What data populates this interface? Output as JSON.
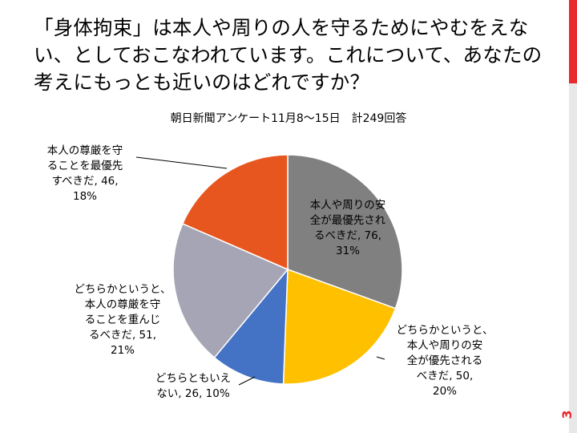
{
  "slide": {
    "question": "「身体拘束」は本人や周りの人を守るためにやむをえない、としておこなわれています。これについて、あなたの考えにもっとも近いのはどれですか？",
    "page_number": "3"
  },
  "colors": {
    "accent_red": "#e8292e",
    "sidebar_gray": "#e8e8e8"
  },
  "chart_data": {
    "type": "pie",
    "title": "朝日新聞アンケート11月8〜15日　計249回答",
    "start_angle_deg": 0,
    "direction": "clockwise",
    "slices": [
      {
        "label": "本人や周りの安全が最優先されるべきだ",
        "value": 76,
        "percent": "31%",
        "color": "#808080"
      },
      {
        "label": "どちらかというと、本人や周りの安全が優先されるべきだ",
        "value": 50,
        "percent": "20%",
        "color": "#ffc000"
      },
      {
        "label": "どちらともいえない",
        "value": 26,
        "percent": "10%",
        "color": "#4472c4"
      },
      {
        "label": "どちらかというと、本人の尊厳を守ることを重んじるべきだ",
        "value": 51,
        "percent": "21%",
        "color": "#a5a5b5"
      },
      {
        "label": "本人の尊厳を守ることを最優先すべきだ",
        "value": 46,
        "percent": "18%",
        "color": "#e8561f"
      }
    ],
    "data_labels": [
      {
        "lines": [
          "本人や周りの安",
          "全が最優先され",
          "るべきだ, 76,",
          "31%"
        ]
      },
      {
        "lines": [
          "どちらかというと、",
          "本人や周りの安",
          "全が優先される",
          "べきだ, 50,",
          "20%"
        ]
      },
      {
        "lines": [
          "どちらともいえ",
          "ない, 26, 10%"
        ]
      },
      {
        "lines": [
          "どちらかというと、",
          "本人の尊厳を守",
          "ることを重んじ",
          "るべきだ, 51,",
          "21%"
        ]
      },
      {
        "lines": [
          "本人の尊厳を守",
          "ることを最優先",
          "すべきだ, 46,",
          "18%"
        ]
      }
    ]
  }
}
